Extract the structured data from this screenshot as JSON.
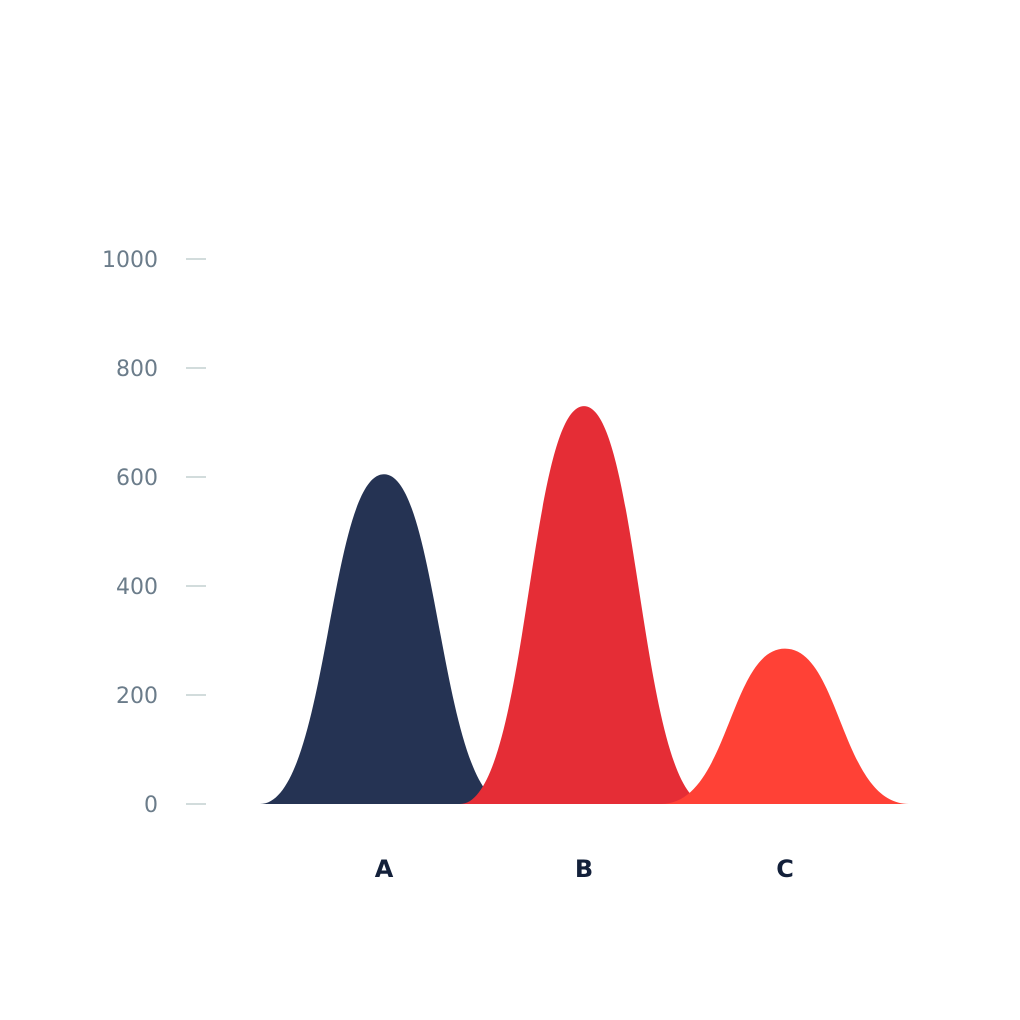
{
  "chart_data": {
    "type": "area",
    "categories": [
      "A",
      "B",
      "C"
    ],
    "values": [
      605,
      730,
      285
    ],
    "colors": [
      "#253353",
      "#e52d36",
      "#ff4136"
    ],
    "ylim": [
      0,
      1000
    ],
    "yticks": [
      "0",
      "200",
      "400",
      "600",
      "800",
      "1000"
    ],
    "ytick_values": [
      0,
      200,
      400,
      600,
      800,
      1000
    ],
    "grid": false,
    "title": "",
    "xlabel": "",
    "ylabel": ""
  }
}
